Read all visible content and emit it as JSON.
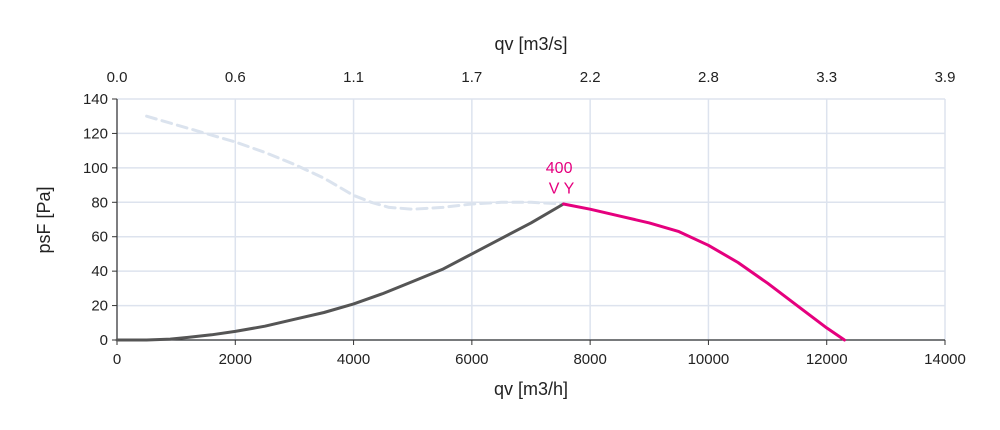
{
  "chart_data": {
    "type": "line",
    "title": "",
    "xlabel": "qv [m3/h]",
    "x2label": "qv [m3/s]",
    "ylabel": "psF [Pa]",
    "xlim": [
      0,
      14000
    ],
    "ylim": [
      0,
      140
    ],
    "x_ticks": [
      "0",
      "2000",
      "4000",
      "6000",
      "8000",
      "10000",
      "12000",
      "14000"
    ],
    "x2_ticks": [
      "0.0",
      "0.6",
      "1.1",
      "1.7",
      "2.2",
      "2.8",
      "3.3",
      "3.9"
    ],
    "y_ticks": [
      "0",
      "20",
      "40",
      "60",
      "80",
      "100",
      "120",
      "140"
    ],
    "grid": true,
    "colors": {
      "grid": "#dde3ee",
      "axis": "#333333",
      "dashed": "#dbe3ee",
      "gray": "#555555",
      "magenta": "#e5007e"
    },
    "series": [
      {
        "style": "dashed",
        "x": [
          500,
          1000,
          1500,
          2000,
          2500,
          3000,
          3500,
          4000,
          4300,
          4600,
          5000,
          5500,
          6000,
          6500,
          7000,
          7550
        ],
        "y": [
          130,
          125,
          120,
          115,
          109,
          102,
          94,
          84,
          80,
          77,
          76,
          77,
          79,
          80,
          80,
          79
        ]
      },
      {
        "style": "solid-gray",
        "x": [
          0,
          500,
          900,
          1200,
          1600,
          2000,
          2500,
          3000,
          3500,
          4000,
          4500,
          5000,
          5500,
          6000,
          6500,
          7000,
          7550
        ],
        "y": [
          0,
          0,
          0.5,
          1.5,
          3,
          5,
          8,
          12,
          16,
          21,
          27,
          34,
          41,
          50,
          59,
          68,
          79
        ]
      },
      {
        "style": "solid-magenta",
        "x": [
          7550,
          8000,
          8500,
          9000,
          9500,
          10000,
          10500,
          11000,
          11500,
          12000,
          12300
        ],
        "y": [
          79,
          76,
          72,
          68,
          63,
          55,
          45,
          33,
          20,
          7,
          0
        ]
      }
    ],
    "annotations": [
      {
        "text": "400",
        "x": 7250,
        "y": 97
      },
      {
        "text": "V Y",
        "x": 7300,
        "y": 85
      }
    ]
  }
}
